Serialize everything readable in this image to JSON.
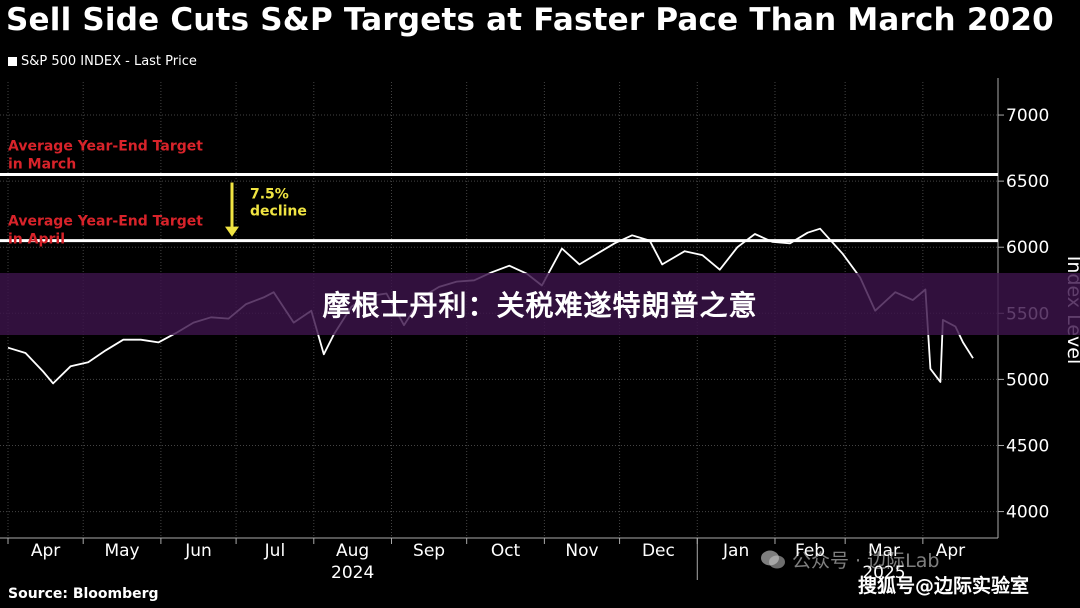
{
  "title": "Sell Side Cuts S&P Targets at Faster Pace Than March 2020",
  "legend": "S&P 500 INDEX - Last Price",
  "overlay_caption": "摩根士丹利：关税难遂特朗普之意",
  "source": "Source: Bloomberg",
  "watermark_bottom": "搜狐号@边际实验室",
  "watermark_wechat": "公众号 · 边际Lab",
  "colors": {
    "background": "#000000",
    "line": "#ffffff",
    "annotation_red": "#d8232a",
    "arrow_yellow": "#f0e442",
    "grid": "#444444"
  },
  "chart_data": {
    "type": "line",
    "title": "Sell Side Cuts S&P Targets at Faster Pace Than March 2020",
    "ylabel": "Index Level",
    "ylim": [
      3800,
      7250
    ],
    "yticks": [
      4000,
      4500,
      5000,
      5500,
      6000,
      6500,
      7000
    ],
    "x_tick_labels": [
      "Apr",
      "May",
      "Jun",
      "Jul",
      "Aug",
      "Sep",
      "Oct",
      "Nov",
      "Dec",
      "Jan",
      "Feb",
      "Mar",
      "Apr"
    ],
    "year_labels": [
      {
        "label": "2024",
        "under": "Aug"
      },
      {
        "label": "2025",
        "under": "Mar"
      }
    ],
    "grid": true,
    "legend_position": "top-left",
    "series": [
      {
        "name": "S&P 500 INDEX - Last Price",
        "x": [
          "2024-04-01",
          "2024-04-08",
          "2024-04-15",
          "2024-04-19",
          "2024-04-26",
          "2024-05-03",
          "2024-05-10",
          "2024-05-17",
          "2024-05-24",
          "2024-05-31",
          "2024-06-07",
          "2024-06-14",
          "2024-06-21",
          "2024-06-28",
          "2024-07-05",
          "2024-07-12",
          "2024-07-16",
          "2024-07-24",
          "2024-07-31",
          "2024-08-05",
          "2024-08-09",
          "2024-08-16",
          "2024-08-23",
          "2024-08-30",
          "2024-09-06",
          "2024-09-13",
          "2024-09-20",
          "2024-09-27",
          "2024-10-04",
          "2024-10-11",
          "2024-10-18",
          "2024-10-25",
          "2024-10-31",
          "2024-11-08",
          "2024-11-15",
          "2024-11-22",
          "2024-11-29",
          "2024-12-06",
          "2024-12-13",
          "2024-12-18",
          "2024-12-27",
          "2025-01-03",
          "2025-01-10",
          "2025-01-17",
          "2025-01-24",
          "2025-01-31",
          "2025-02-07",
          "2025-02-14",
          "2025-02-19",
          "2025-02-28",
          "2025-03-07",
          "2025-03-13",
          "2025-03-21",
          "2025-03-28",
          "2025-04-02",
          "2025-04-04",
          "2025-04-08",
          "2025-04-09",
          "2025-04-14",
          "2025-04-17",
          "2025-04-21"
        ],
        "values": [
          5240,
          5200,
          5060,
          4970,
          5100,
          5130,
          5220,
          5300,
          5300,
          5280,
          5350,
          5430,
          5470,
          5460,
          5570,
          5620,
          5660,
          5430,
          5520,
          5190,
          5340,
          5550,
          5630,
          5650,
          5410,
          5620,
          5700,
          5740,
          5750,
          5810,
          5860,
          5800,
          5710,
          5990,
          5870,
          5950,
          6030,
          6090,
          6050,
          5870,
          5970,
          5940,
          5830,
          6000,
          6100,
          6040,
          6030,
          6110,
          6140,
          5950,
          5770,
          5520,
          5660,
          5600,
          5680,
          5080,
          4980,
          5450,
          5400,
          5280,
          5160
        ]
      }
    ],
    "annotations": [
      {
        "text": "Average Year-End Target in March",
        "value": 6550
      },
      {
        "text": "Average Year-End Target in April",
        "value": 6050
      },
      {
        "text": "7.5% decline",
        "from": 6550,
        "to": 6050
      }
    ],
    "reference_lines": [
      6550,
      6050
    ]
  }
}
